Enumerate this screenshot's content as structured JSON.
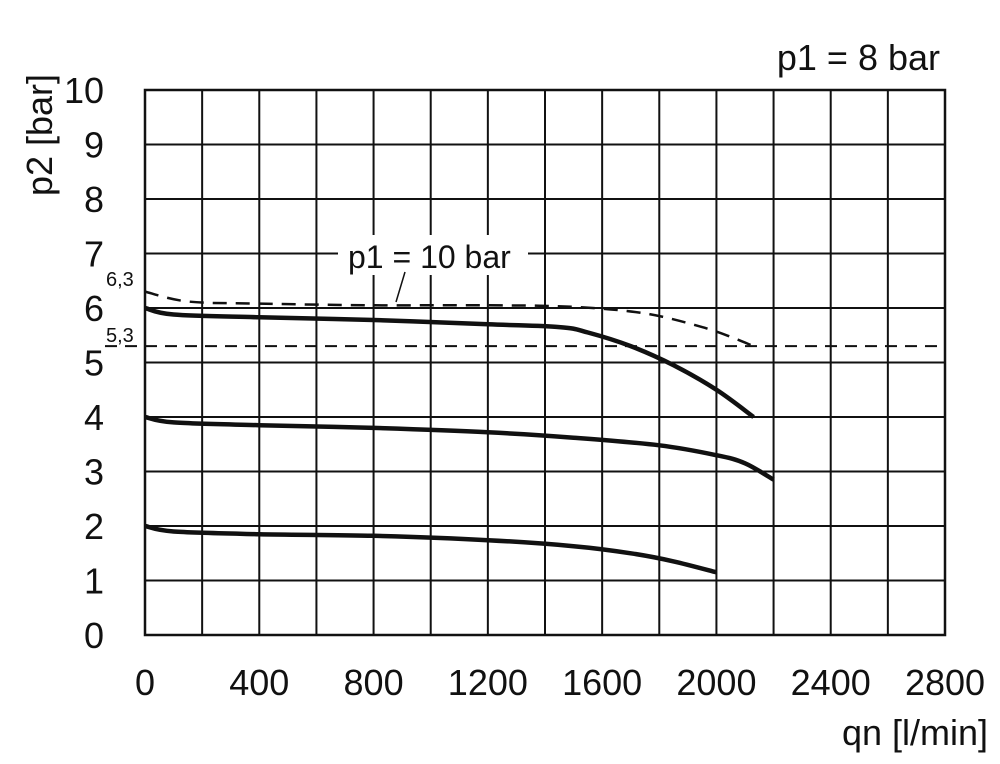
{
  "chart_data": {
    "type": "line",
    "title": "p1 = 8 bar",
    "xlabel": "qn [l/min]",
    "ylabel": "p2 [bar]",
    "xlim": [
      0,
      2800
    ],
    "ylim": [
      0,
      10
    ],
    "xticks": [
      0,
      400,
      800,
      1200,
      1600,
      2000,
      2400,
      2800
    ],
    "yticks": [
      0,
      1,
      2,
      3,
      4,
      5,
      6,
      7,
      8,
      9,
      10
    ],
    "grid": true,
    "x_grid_step": 200,
    "y_grid_step": 1,
    "annotations": {
      "dashed_series_label": "p1 = 10 bar",
      "level_high": "6,3",
      "level_low": "5,3"
    },
    "reference_lines": [
      5.3
    ],
    "series": [
      {
        "style": "solid",
        "points": [
          [
            0,
            6.0
          ],
          [
            100,
            5.88
          ],
          [
            400,
            5.83
          ],
          [
            800,
            5.78
          ],
          [
            1200,
            5.7
          ],
          [
            1450,
            5.65
          ],
          [
            1550,
            5.55
          ],
          [
            1700,
            5.3
          ],
          [
            1850,
            4.95
          ],
          [
            2000,
            4.5
          ],
          [
            2130,
            4.0
          ]
        ]
      },
      {
        "style": "solid",
        "points": [
          [
            0,
            4.0
          ],
          [
            100,
            3.9
          ],
          [
            400,
            3.85
          ],
          [
            800,
            3.8
          ],
          [
            1200,
            3.72
          ],
          [
            1500,
            3.62
          ],
          [
            1800,
            3.48
          ],
          [
            2000,
            3.3
          ],
          [
            2100,
            3.15
          ],
          [
            2200,
            2.85
          ]
        ]
      },
      {
        "style": "solid",
        "points": [
          [
            0,
            2.0
          ],
          [
            100,
            1.9
          ],
          [
            400,
            1.85
          ],
          [
            800,
            1.82
          ],
          [
            1200,
            1.74
          ],
          [
            1500,
            1.63
          ],
          [
            1700,
            1.5
          ],
          [
            1850,
            1.35
          ],
          [
            2000,
            1.15
          ]
        ]
      },
      {
        "name": "p1 = 10 bar",
        "style": "dashed",
        "points": [
          [
            0,
            6.3
          ],
          [
            150,
            6.12
          ],
          [
            400,
            6.08
          ],
          [
            800,
            6.05
          ],
          [
            1200,
            6.05
          ],
          [
            1500,
            6.02
          ],
          [
            1750,
            5.9
          ],
          [
            1950,
            5.65
          ],
          [
            2060,
            5.45
          ],
          [
            2130,
            5.3
          ]
        ]
      }
    ]
  }
}
